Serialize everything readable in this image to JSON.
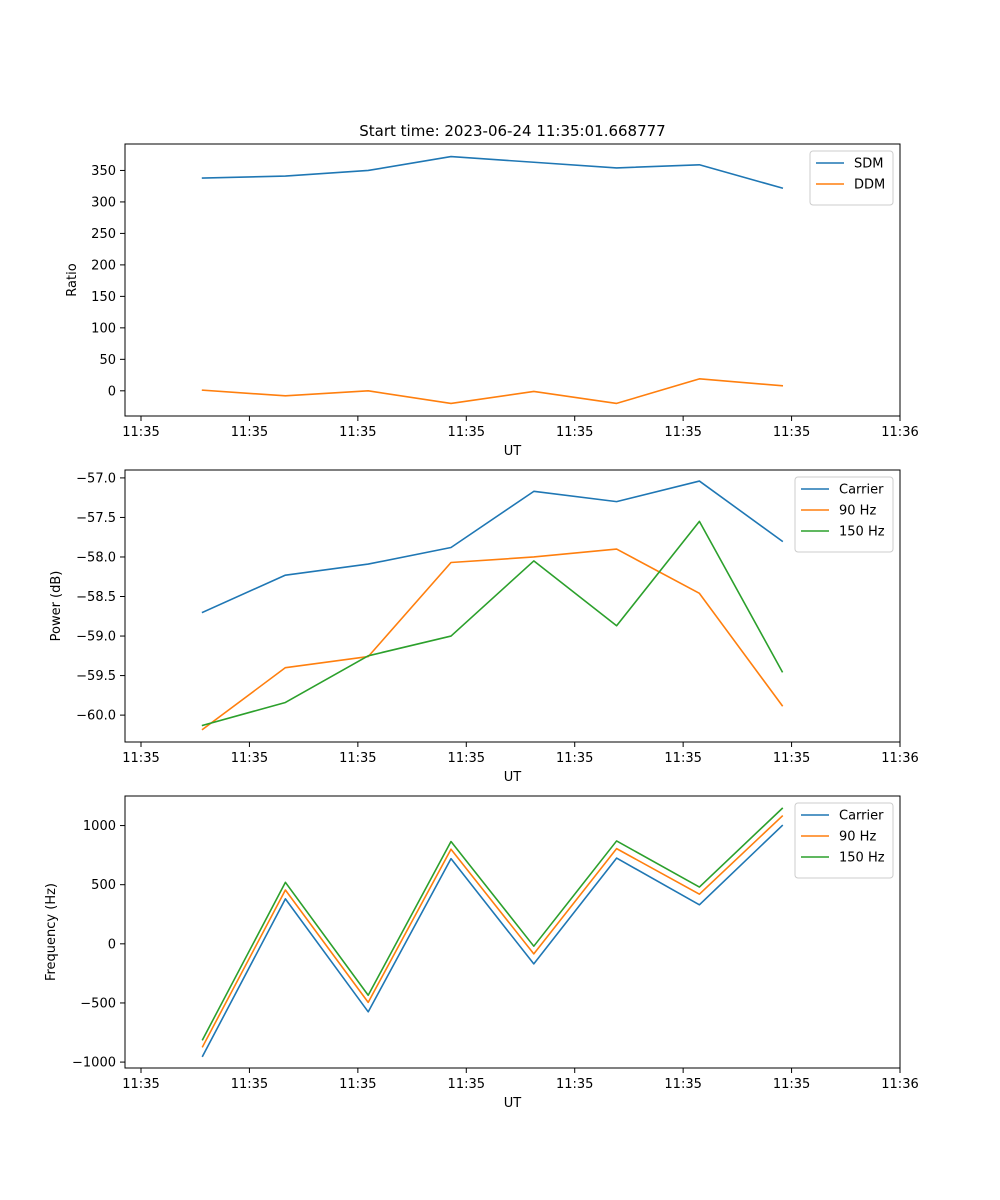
{
  "figure": {
    "title": "Start time: 2023-06-24 11:35:01.668777"
  },
  "chart_data": [
    {
      "type": "line",
      "title": "Start time: 2023-06-24 11:35:01.668777",
      "xlabel": "UT",
      "ylabel": "Ratio",
      "x_tick_labels": [
        "11:35",
        "11:35",
        "11:35",
        "11:35",
        "11:35",
        "11:35",
        "11:35"
      ],
      "x_last_tick_label": "11:36",
      "x_tick_count": 7,
      "x_extent_index": [
        -0.2,
        8.9
      ],
      "x_last_tick_index": 8.9,
      "ylim": [
        -40,
        392
      ],
      "yticks": [
        0,
        50,
        100,
        150,
        200,
        250,
        300,
        350
      ],
      "ytick_labels": [
        "0",
        "50",
        "100",
        "150",
        "200",
        "250",
        "300",
        "350"
      ],
      "grid": false,
      "legend": "top-right",
      "series": [
        {
          "name": "SDM",
          "color": "#1f77b4",
          "x": [
            0,
            1,
            2,
            3,
            4,
            5,
            6,
            7
          ],
          "values": [
            338,
            341,
            350,
            372,
            363,
            354,
            359,
            322
          ]
        },
        {
          "name": "DDM",
          "color": "#ff7f0e",
          "x": [
            0,
            1,
            2,
            3,
            4,
            5,
            6,
            7
          ],
          "values": [
            1,
            -8,
            0,
            -20,
            -1,
            -20,
            19,
            8
          ]
        }
      ]
    },
    {
      "type": "line",
      "title": "",
      "xlabel": "UT",
      "ylabel": "Power (dB)",
      "x_tick_labels": [
        "11:35",
        "11:35",
        "11:35",
        "11:35",
        "11:35",
        "11:35",
        "11:35"
      ],
      "x_last_tick_label": "11:36",
      "x_tick_count": 7,
      "x_extent_index": [
        -0.2,
        8.9
      ],
      "x_last_tick_index": 8.9,
      "ylim": [
        -60.34,
        -56.9
      ],
      "yticks": [
        -60.0,
        -59.5,
        -59.0,
        -58.5,
        -58.0,
        -57.5,
        -57.0
      ],
      "ytick_labels": [
        "−60.0",
        "−59.5",
        "−59.0",
        "−58.5",
        "−58.0",
        "−57.5",
        "−57.0"
      ],
      "grid": false,
      "legend": "top-right",
      "series": [
        {
          "name": "Carrier",
          "color": "#1f77b4",
          "x": [
            0,
            1,
            2,
            3,
            4,
            5,
            6,
            7
          ],
          "values": [
            -58.7,
            -58.23,
            -58.09,
            -57.88,
            -57.17,
            -57.3,
            -57.04,
            -57.8
          ]
        },
        {
          "name": "90 Hz",
          "color": "#ff7f0e",
          "x": [
            0,
            1,
            2,
            3,
            4,
            5,
            6,
            7
          ],
          "values": [
            -60.18,
            -59.4,
            -59.26,
            -58.07,
            -58.0,
            -57.9,
            -58.46,
            -59.88
          ]
        },
        {
          "name": "150 Hz",
          "color": "#2ca02c",
          "x": [
            0,
            1,
            2,
            3,
            4,
            5,
            6,
            7
          ],
          "values": [
            -60.13,
            -59.84,
            -59.25,
            -59.0,
            -58.05,
            -58.87,
            -57.55,
            -59.45
          ]
        }
      ]
    },
    {
      "type": "line",
      "title": "",
      "xlabel": "UT",
      "ylabel": "Frequency (Hz)",
      "x_tick_labels": [
        "11:35",
        "11:35",
        "11:35",
        "11:35",
        "11:35",
        "11:35",
        "11:35"
      ],
      "x_last_tick_label": "11:36",
      "x_tick_count": 7,
      "x_extent_index": [
        -0.2,
        8.9
      ],
      "x_last_tick_index": 8.9,
      "ylim": [
        -1050,
        1250
      ],
      "yticks": [
        -1000,
        -500,
        0,
        500,
        1000
      ],
      "ytick_labels": [
        "−1000",
        "−500",
        "0",
        "500",
        "1000"
      ],
      "grid": false,
      "legend": "top-right",
      "series": [
        {
          "name": "Carrier",
          "color": "#1f77b4",
          "x": [
            0,
            1,
            2,
            3,
            4,
            5,
            6,
            7
          ],
          "values": [
            -950,
            380,
            -575,
            720,
            -170,
            725,
            330,
            1000
          ]
        },
        {
          "name": "90 Hz",
          "color": "#ff7f0e",
          "x": [
            0,
            1,
            2,
            3,
            4,
            5,
            6,
            7
          ],
          "values": [
            -870,
            455,
            -495,
            800,
            -85,
            805,
            420,
            1080
          ]
        },
        {
          "name": "150 Hz",
          "color": "#2ca02c",
          "x": [
            0,
            1,
            2,
            3,
            4,
            5,
            6,
            7
          ],
          "values": [
            -810,
            520,
            -435,
            865,
            -20,
            870,
            480,
            1145
          ]
        }
      ]
    }
  ]
}
